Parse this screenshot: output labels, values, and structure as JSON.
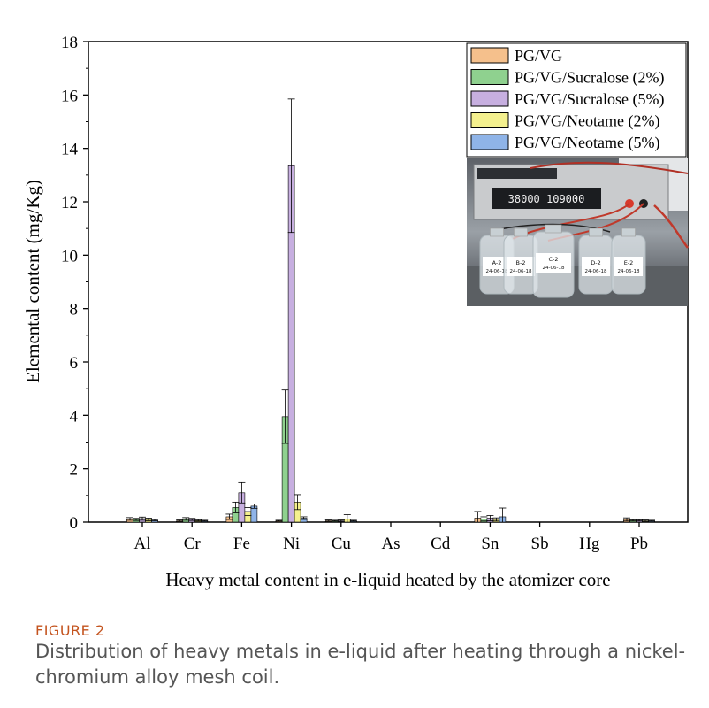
{
  "figure": {
    "label": "FIGURE 2",
    "caption": "Distribution of heavy metals in e-liquid after heating through a nickel-chromium alloy mesh coil."
  },
  "chart_data": {
    "type": "bar",
    "xlabel": "Heavy metal content in e-liquid heated by the atomizer core",
    "ylabel": "Elemental content (mg/Kg)",
    "ylim": [
      0,
      18
    ],
    "yticks": [
      0,
      2,
      4,
      6,
      8,
      10,
      12,
      14,
      16,
      18
    ],
    "categories": [
      "Al",
      "Cr",
      "Fe",
      "Ni",
      "Cu",
      "As",
      "Cd",
      "Sn",
      "Sb",
      "Hg",
      "Pb"
    ],
    "legend_position": "top-right",
    "series": [
      {
        "name": "PG/VG",
        "color": "#f5c08c",
        "values": [
          0.12,
          0.05,
          0.2,
          0.05,
          0.05,
          0,
          0,
          0.15,
          0,
          0,
          0.1
        ],
        "errors": [
          0.05,
          0.03,
          0.1,
          0.02,
          0.03,
          0,
          0,
          0.25,
          0,
          0,
          0.06
        ]
      },
      {
        "name": "PG/VG/Sucralose (2%)",
        "color": "#8fd18f",
        "values": [
          0.1,
          0.12,
          0.55,
          3.95,
          0.05,
          0,
          0,
          0.12,
          0,
          0,
          0.07
        ],
        "errors": [
          0.04,
          0.05,
          0.2,
          1.0,
          0.02,
          0,
          0,
          0.08,
          0,
          0,
          0.03
        ]
      },
      {
        "name": "PG/VG/Sucralose (5%)",
        "color": "#c7afe0",
        "values": [
          0.13,
          0.1,
          1.1,
          13.35,
          0.05,
          0,
          0,
          0.15,
          0,
          0,
          0.07
        ],
        "errors": [
          0.06,
          0.04,
          0.38,
          2.5,
          0.03,
          0,
          0,
          0.1,
          0,
          0,
          0.03
        ]
      },
      {
        "name": "PG/VG/Neotame (2%)",
        "color": "#f4f08e",
        "values": [
          0.1,
          0.06,
          0.4,
          0.75,
          0.12,
          0,
          0,
          0.1,
          0,
          0,
          0.05
        ],
        "errors": [
          0.05,
          0.03,
          0.15,
          0.28,
          0.16,
          0,
          0,
          0.06,
          0,
          0,
          0.03
        ]
      },
      {
        "name": "PG/VG/Neotame (5%)",
        "color": "#8fb4e8",
        "values": [
          0.08,
          0.05,
          0.6,
          0.15,
          0.05,
          0,
          0,
          0.2,
          0,
          0,
          0.05
        ],
        "errors": [
          0.03,
          0.02,
          0.08,
          0.05,
          0.02,
          0,
          0,
          0.33,
          0,
          0,
          0.02
        ]
      }
    ]
  },
  "inset_photo": {
    "display_readout": "38000 109000",
    "bottles": [
      "A-2 24-06-18",
      "B-2 24-06-18",
      "C-2 24-06-18",
      "D-2 24-06-18",
      "E-2 24-06-18"
    ]
  }
}
